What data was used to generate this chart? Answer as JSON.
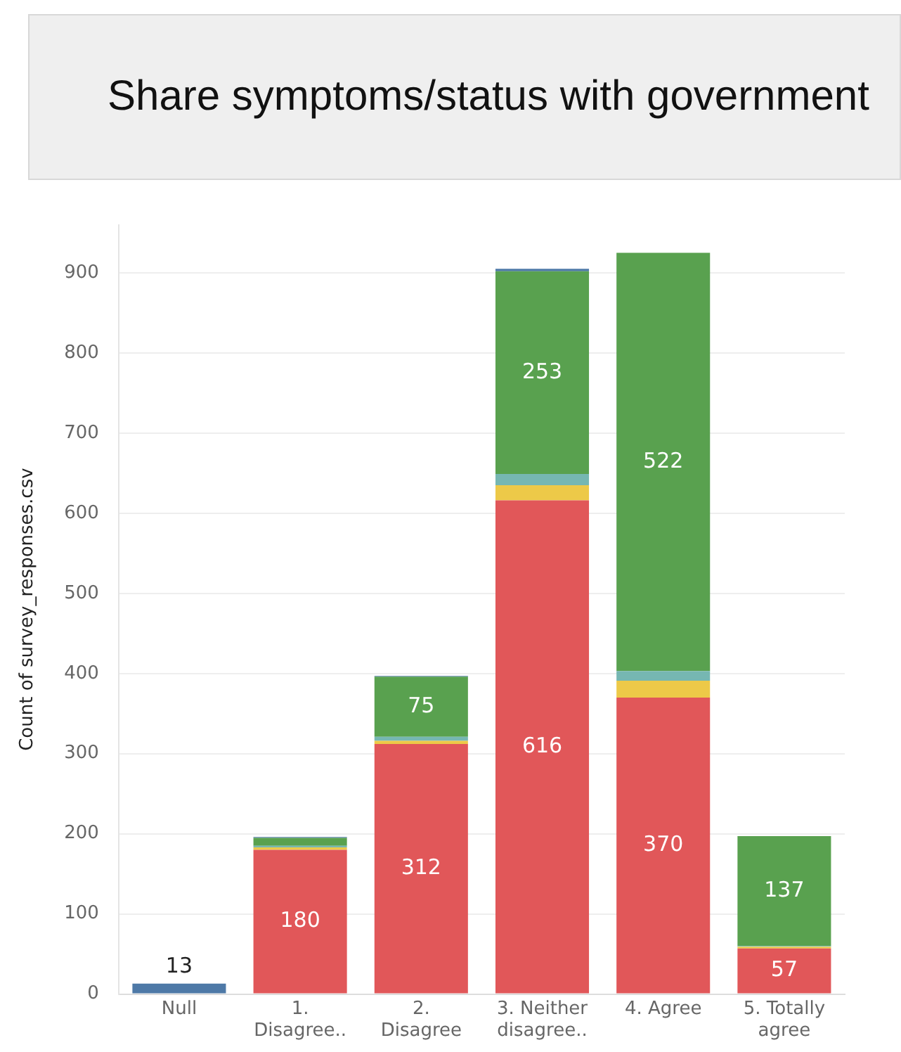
{
  "chart_data": {
    "type": "bar",
    "stacked": true,
    "title": "Share symptoms/status with government",
    "ylabel": "Count of survey_responses.csv",
    "categories": [
      "Null",
      "1. Disagree..",
      "2. Disagree",
      "3. Neither disagree..",
      "4. Agree",
      "5. Totally agree"
    ],
    "series": [
      {
        "color": "#e15759",
        "values": [
          null,
          180,
          312,
          616,
          370,
          57
        ],
        "value_labels": [
          null,
          "180",
          "312",
          "616",
          "370",
          "57"
        ]
      },
      {
        "color": "#edc948",
        "values": [
          null,
          3,
          4,
          19,
          21,
          2
        ]
      },
      {
        "color": "#76b7b2",
        "values": [
          null,
          2,
          5,
          14,
          12,
          1
        ]
      },
      {
        "color": "#59a14f",
        "values": [
          null,
          10,
          75,
          253,
          522,
          137
        ],
        "value_labels": [
          null,
          null,
          "75",
          "253",
          "522",
          "137"
        ]
      },
      {
        "color": "#4e79a7",
        "values": [
          13,
          1,
          1,
          3,
          null,
          null
        ],
        "value_labels": [
          "13",
          null,
          null,
          null,
          null,
          null
        ]
      }
    ],
    "ylim": [
      0,
      960
    ],
    "yticks": [
      0,
      100,
      200,
      300,
      400,
      500,
      600,
      700,
      800,
      900
    ],
    "grid": "y",
    "legend": false
  }
}
